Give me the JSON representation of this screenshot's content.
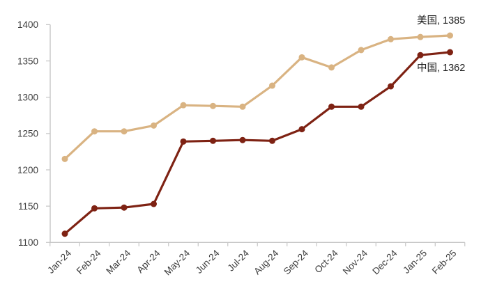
{
  "chart_data": {
    "type": "line",
    "title": "",
    "xlabel": "",
    "ylabel": "",
    "categories": [
      "Jan-24",
      "Feb-24",
      "Mar-24",
      "Apr-24",
      "May-24",
      "Jun-24",
      "Jul-24",
      "Aug-24",
      "Sep-24",
      "Oct-24",
      "Nov-24",
      "Dec-24",
      "Jan-25",
      "Feb-25"
    ],
    "series": [
      {
        "name": "美国",
        "end_label": "美国, 1385",
        "final_value": 1385,
        "color": "#D9B382",
        "values": [
          1215,
          1253,
          1253,
          1261,
          1289,
          1288,
          1287,
          1316,
          1355,
          1341,
          1365,
          1380,
          1383,
          1385
        ]
      },
      {
        "name": "中国",
        "end_label": "中国, 1362",
        "final_value": 1362,
        "color": "#7E2213",
        "values": [
          1112,
          1147,
          1148,
          1153,
          1239,
          1240,
          1241,
          1240,
          1256,
          1287,
          1287,
          1315,
          1358,
          1362
        ]
      }
    ],
    "ylim": [
      1100,
      1400
    ],
    "yticks": [
      1100,
      1150,
      1200,
      1250,
      1300,
      1350,
      1400
    ],
    "ytick_labels": [
      "1100",
      "1150",
      "1200",
      "1250",
      "1300",
      "1350",
      "1400"
    ],
    "grid": false,
    "legend_position": "end-of-line-labels",
    "marker": "circle",
    "colors": {
      "axis": "#C6C6C6",
      "tick_text": "#3D3D3D",
      "series_label_text": "#1F1F1F",
      "background": "#FFFFFF"
    }
  }
}
